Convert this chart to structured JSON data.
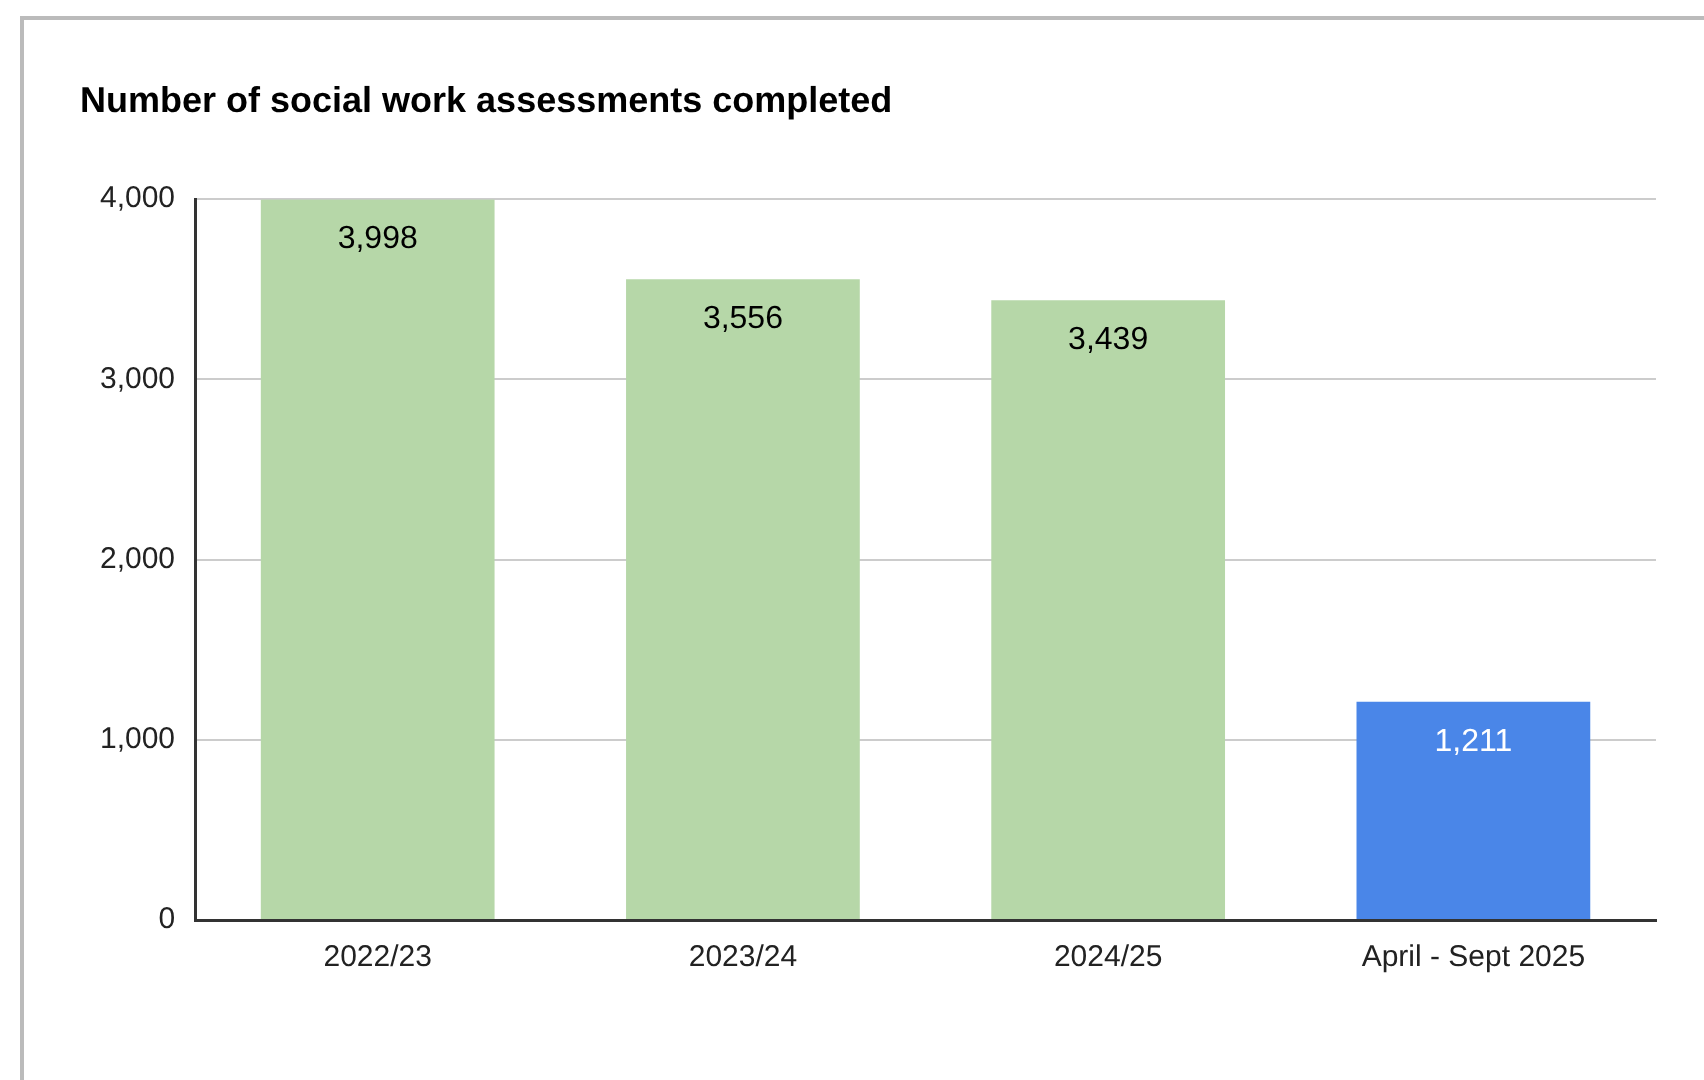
{
  "chart_data": {
    "type": "bar",
    "title": "Number of social work assessments completed",
    "categories": [
      "2022/23",
      "2023/24",
      "2024/25",
      "April - Sept 2025"
    ],
    "values": [
      3998,
      3556,
      3439,
      1211
    ],
    "colors": [
      "#b6d7a8",
      "#b6d7a8",
      "#b6d7a8",
      "#4a86e8"
    ],
    "ylim": [
      0,
      4000
    ],
    "yticks": [
      {
        "value": 0,
        "label": "0"
      },
      {
        "value": 1000,
        "label": "1,000"
      },
      {
        "value": 2000,
        "label": "2,000"
      },
      {
        "value": 3000,
        "label": "3,000"
      },
      {
        "value": 4000,
        "label": "4,000"
      }
    ],
    "value_labels": [
      "3,998",
      "3,556",
      "3,439",
      "1,211"
    ],
    "grid": "y"
  }
}
